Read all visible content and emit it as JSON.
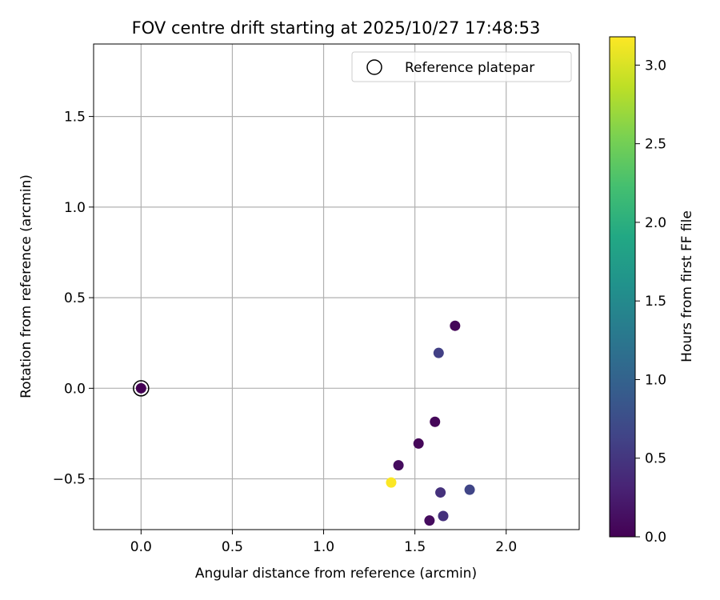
{
  "chart_data": {
    "type": "scatter",
    "title": "FOV centre drift starting at 2025/10/27 17:48:53",
    "xlabel": "Angular distance from reference (arcmin)",
    "ylabel": "Rotation from reference (arcmin)",
    "xlim": [
      -0.26,
      2.4
    ],
    "ylim": [
      -0.78,
      1.9
    ],
    "x_ticks": [
      {
        "value": 0.0,
        "label": "0.0"
      },
      {
        "value": 0.5,
        "label": "0.5"
      },
      {
        "value": 1.0,
        "label": "1.0"
      },
      {
        "value": 1.5,
        "label": "1.5"
      },
      {
        "value": 2.0,
        "label": "2.0"
      }
    ],
    "y_ticks": [
      {
        "value": -0.5,
        "label": "−0.5"
      },
      {
        "value": 0.0,
        "label": "0.0"
      },
      {
        "value": 0.5,
        "label": "0.5"
      },
      {
        "value": 1.0,
        "label": "1.0"
      },
      {
        "value": 1.5,
        "label": "1.5"
      }
    ],
    "grid": true,
    "legend": {
      "position": "top-right",
      "entries": [
        "Reference platepar"
      ]
    },
    "reference": {
      "name": "Reference platepar",
      "x": 0.0,
      "y": 0.0
    },
    "points": [
      {
        "x": 0.0,
        "y": 0.0,
        "hours": 0.0
      },
      {
        "x": 1.72,
        "y": 0.345,
        "hours": 0.05
      },
      {
        "x": 1.63,
        "y": 0.195,
        "hours": 0.6
      },
      {
        "x": 1.61,
        "y": -0.185,
        "hours": 0.05
      },
      {
        "x": 1.52,
        "y": -0.305,
        "hours": 0.05
      },
      {
        "x": 1.41,
        "y": -0.425,
        "hours": 0.1
      },
      {
        "x": 1.37,
        "y": -0.52,
        "hours": 3.17
      },
      {
        "x": 1.64,
        "y": -0.575,
        "hours": 0.45
      },
      {
        "x": 1.8,
        "y": -0.56,
        "hours": 0.65
      },
      {
        "x": 1.655,
        "y": -0.705,
        "hours": 0.45
      },
      {
        "x": 1.58,
        "y": -0.73,
        "hours": 0.1
      }
    ],
    "colorbar": {
      "label": "Hours from first FF file",
      "range": [
        0.0,
        3.18
      ],
      "colormap": "viridis",
      "ticks": [
        {
          "value": 0.0,
          "label": "0.0"
        },
        {
          "value": 0.5,
          "label": "0.5"
        },
        {
          "value": 1.0,
          "label": "1.0"
        },
        {
          "value": 1.5,
          "label": "1.5"
        },
        {
          "value": 2.0,
          "label": "2.0"
        },
        {
          "value": 2.5,
          "label": "2.5"
        },
        {
          "value": 3.0,
          "label": "3.0"
        }
      ]
    }
  }
}
